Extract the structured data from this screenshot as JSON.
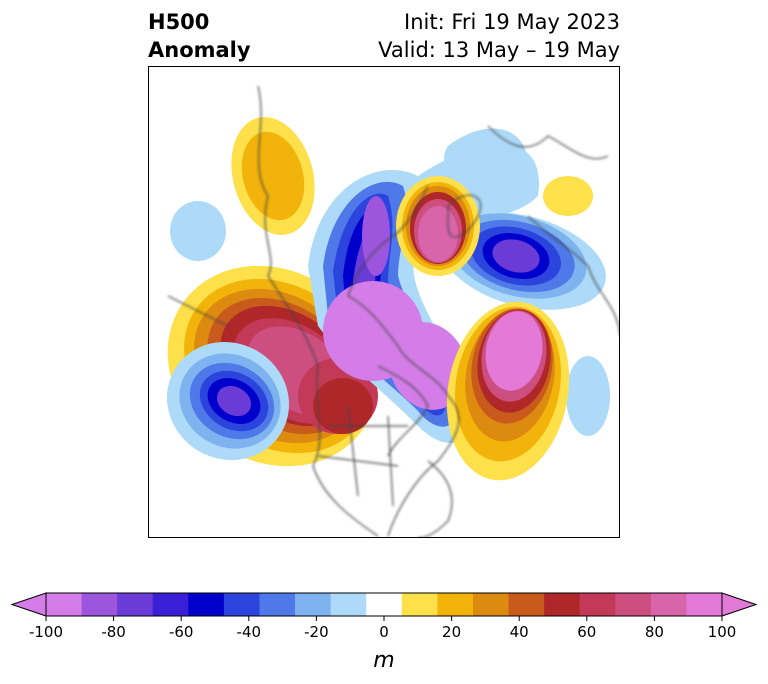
{
  "title": {
    "left_line1": "H500",
    "left_line2": "Anomaly",
    "right_line1": "Init: Fri 19 May 2023",
    "right_line2": "Valid: 13 May – 19 May"
  },
  "colorbar": {
    "unit": "m",
    "ticks": [
      "-100",
      "-80",
      "-60",
      "-40",
      "-20",
      "0",
      "20",
      "40",
      "60",
      "80",
      "100"
    ],
    "colors": [
      "#d47de8",
      "#9c55dc",
      "#6a3bd6",
      "#3a1fd6",
      "#0000cc",
      "#2b44dd",
      "#4f78e8",
      "#7eb3f0",
      "#acdaf8",
      "#ffffff",
      "#fde04a",
      "#f2b40a",
      "#dd8a10",
      "#c85a1c",
      "#b0272a",
      "#c33a58",
      "#cc4f7f",
      "#d865aa",
      "#e47ad8"
    ],
    "extend_min_color": "#d47de8",
    "extend_max_color": "#e47ad8"
  },
  "map": {
    "projection": "polar stereographic (North America)",
    "coastline_color": "#444444"
  }
}
